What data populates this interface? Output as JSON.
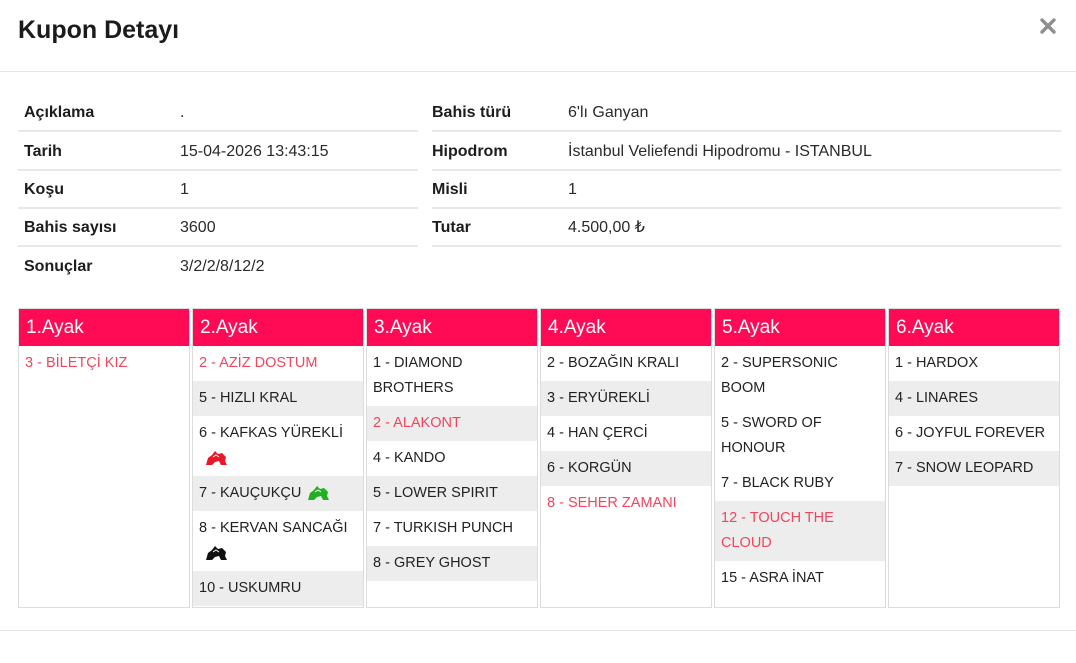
{
  "modal": {
    "title": "Kupon Detayı",
    "close_symbol": "×"
  },
  "info": {
    "rows": [
      {
        "l1": "Açıklama",
        "v1": ".",
        "l2": "Bahis türü",
        "v2": "6'lı Ganyan"
      },
      {
        "l1": "Tarih",
        "v1": "15-04-2026 13:43:15",
        "l2": "Hipodrom",
        "v2": "İstanbul Veliefendi Hipodromu - ISTANBUL"
      },
      {
        "l1": "Koşu",
        "v1": "1",
        "l2": "Misli",
        "v2": "1"
      },
      {
        "l1": "Bahis sayısı",
        "v1": "3600",
        "l2": "Tutar",
        "v2": "4.500,00 ₺"
      },
      {
        "l1": "Sonuçlar",
        "v1": "3/2/2/8/12/2",
        "l2": "",
        "v2": ""
      }
    ]
  },
  "colors": {
    "accent": "#ff0a55",
    "winner_text": "#f0465e",
    "alt_row": "#ededed"
  },
  "legs": [
    {
      "title": "1.Ayak",
      "runners": [
        {
          "text": "3 - BİLETÇİ KIZ",
          "winner": true,
          "alt": false
        }
      ]
    },
    {
      "title": "2.Ayak",
      "runners": [
        {
          "text": "2 - AZİZ DOSTUM",
          "winner": true,
          "alt": false
        },
        {
          "text": "5 - HIZLI KRAL",
          "winner": false,
          "alt": true
        },
        {
          "text": "6 - KAFKAS YÜREKLİ",
          "winner": false,
          "alt": false,
          "silk": "silk-red-icon",
          "silk_color": "#e8182a"
        },
        {
          "text": "7 - KAUÇUKÇU",
          "winner": false,
          "alt": true,
          "silk": "silk-green-icon",
          "silk_color": "#22b022"
        },
        {
          "text": "8 - KERVAN SANCAĞI",
          "winner": false,
          "alt": false,
          "silk": "silk-black-icon",
          "silk_color": "#111111"
        },
        {
          "text": "10 - USKUMRU",
          "winner": false,
          "alt": true
        }
      ]
    },
    {
      "title": "3.Ayak",
      "runners": [
        {
          "text": "1 - DIAMOND BROTHERS",
          "winner": false,
          "alt": false
        },
        {
          "text": "2 - ALAKONT",
          "winner": true,
          "alt": true
        },
        {
          "text": "4 - KANDO",
          "winner": false,
          "alt": false
        },
        {
          "text": "5 - LOWER SPIRIT",
          "winner": false,
          "alt": true
        },
        {
          "text": "7 - TURKISH PUNCH",
          "winner": false,
          "alt": false
        },
        {
          "text": "8 - GREY GHOST",
          "winner": false,
          "alt": true
        }
      ]
    },
    {
      "title": "4.Ayak",
      "runners": [
        {
          "text": "2 - BOZAĞIN KRALI",
          "winner": false,
          "alt": false
        },
        {
          "text": "3 - ERYÜREKLİ",
          "winner": false,
          "alt": true
        },
        {
          "text": "4 - HAN ÇERCİ",
          "winner": false,
          "alt": false
        },
        {
          "text": "6 - KORGÜN",
          "winner": false,
          "alt": true
        },
        {
          "text": "8 - SEHER ZAMANI",
          "winner": true,
          "alt": false
        }
      ]
    },
    {
      "title": "5.Ayak",
      "runners": [
        {
          "text": "2 - SUPERSONIC BOOM",
          "winner": false,
          "alt": false
        },
        {
          "text": "5 - SWORD OF HONOUR",
          "winner": false,
          "alt": false
        },
        {
          "text": "7 - BLACK RUBY",
          "winner": false,
          "alt": false
        },
        {
          "text": "12 - TOUCH THE CLOUD",
          "winner": true,
          "alt": true
        },
        {
          "text": "15 - ASRA İNAT",
          "winner": false,
          "alt": false
        }
      ]
    },
    {
      "title": "6.Ayak",
      "runners": [
        {
          "text": "1 - HARDOX",
          "winner": false,
          "alt": false
        },
        {
          "text": "4 - LINARES",
          "winner": false,
          "alt": true
        },
        {
          "text": "6 - JOYFUL FOREVER",
          "winner": false,
          "alt": false
        },
        {
          "text": "7 - SNOW LEOPARD",
          "winner": false,
          "alt": true
        }
      ]
    }
  ]
}
